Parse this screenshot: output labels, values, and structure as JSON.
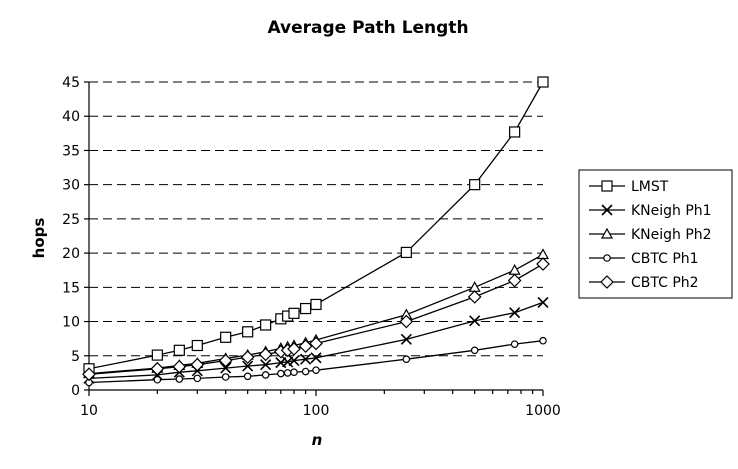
{
  "chart_data": {
    "type": "line",
    "title": "Average Path Length",
    "xlabel": "n",
    "ylabel": "hops",
    "xscale": "log",
    "xlim": [
      10,
      1000
    ],
    "ylim": [
      0,
      45
    ],
    "yticks": [
      0,
      5,
      10,
      15,
      20,
      25,
      30,
      35,
      40,
      45
    ],
    "xticks": [
      10,
      100,
      1000
    ],
    "grid": "horizontal dashed",
    "legend_position": "right",
    "x": [
      10,
      20,
      25,
      30,
      40,
      50,
      60,
      70,
      75,
      80,
      90,
      100,
      250,
      500,
      750,
      1000
    ],
    "series": [
      {
        "name": "LMST",
        "marker": "square",
        "values": [
          3.1,
          5.1,
          5.8,
          6.5,
          7.7,
          8.5,
          9.5,
          10.4,
          10.8,
          11.2,
          11.9,
          12.5,
          20.1,
          30.0,
          37.7,
          45.0
        ]
      },
      {
        "name": "KNeigh Ph1",
        "marker": "x",
        "values": [
          1.7,
          2.2,
          2.6,
          2.8,
          3.2,
          3.5,
          3.7,
          4.0,
          4.1,
          4.3,
          4.5,
          4.7,
          7.4,
          10.1,
          11.3,
          12.8
        ]
      },
      {
        "name": "KNeigh Ph2",
        "marker": "triangle",
        "values": [
          2.4,
          3.2,
          3.6,
          3.9,
          4.6,
          5.1,
          5.6,
          6.1,
          6.3,
          6.5,
          6.9,
          7.3,
          11.0,
          15.0,
          17.5,
          19.8
        ]
      },
      {
        "name": "CBTC Ph1",
        "marker": "circle",
        "values": [
          1.1,
          1.5,
          1.6,
          1.7,
          1.9,
          2.0,
          2.2,
          2.4,
          2.5,
          2.6,
          2.7,
          2.9,
          4.5,
          5.8,
          6.7,
          7.2
        ]
      },
      {
        "name": "CBTC Ph2",
        "marker": "diamond",
        "values": [
          2.3,
          3.1,
          3.4,
          3.7,
          4.3,
          4.8,
          5.2,
          5.6,
          5.8,
          6.0,
          6.4,
          6.8,
          10.0,
          13.6,
          16.0,
          18.4
        ]
      }
    ]
  }
}
